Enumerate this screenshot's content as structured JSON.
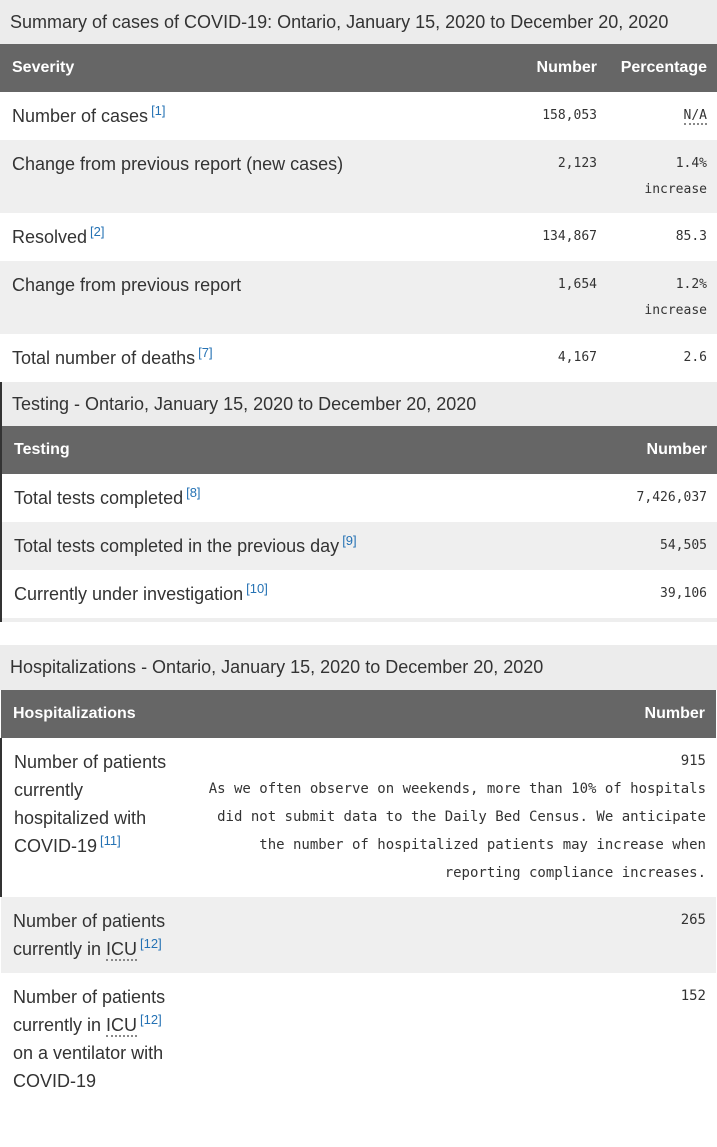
{
  "sections": [
    {
      "caption": "Summary of cases of COVID-19: Ontario, January 15, 2020 to December 20, 2020",
      "headers": [
        "Severity",
        "Number",
        "Percentage"
      ],
      "rows": [
        {
          "label": "Number of cases",
          "ref": "[1]",
          "number": "158,053",
          "percentage": "N/A"
        },
        {
          "label": "Change from previous report (new cases)",
          "number": "2,123",
          "percentage": "1.4%",
          "note": "increase"
        },
        {
          "label": "Resolved",
          "ref": "[2]",
          "number": "134,867",
          "percentage": "85.3"
        },
        {
          "label": "Change from previous report",
          "number": "1,654",
          "percentage": "1.2%",
          "note": "increase"
        },
        {
          "label": "Total number of deaths",
          "ref": "[7]",
          "number": "4,167",
          "percentage": "2.6"
        }
      ]
    },
    {
      "caption": "Testing - Ontario, January 15, 2020 to December 20, 2020",
      "headers": [
        "Testing",
        "Number"
      ],
      "rows": [
        {
          "label": "Total tests completed",
          "ref": "[8]",
          "number": "7,426,037"
        },
        {
          "label": "Total tests completed in the previous day",
          "ref": "[9]",
          "number": "54,505"
        },
        {
          "label": "Currently under investigation",
          "ref": "[10]",
          "number": "39,106"
        }
      ]
    },
    {
      "caption": "Hospitalizations - Ontario, January 15, 2020 to December 20, 2020",
      "headers": [
        "Hospitalizations",
        "Number"
      ],
      "rows": [
        {
          "label": "Number of patients currently hospitalized with COVID-19",
          "ref": "[11]",
          "number": "915",
          "note": "As we often observe on weekends, more than 10% of hospitals did not submit data to the Daily Bed Census. We anticipate the number of hospitalized patients may increase when reporting compliance increases."
        },
        {
          "label": "Number of patients currently in",
          "abbr": "ICU",
          "ref": "[12]",
          "number": "265"
        },
        {
          "label": "Number of patients currently in",
          "abbr": "ICU",
          "ref": "[12]",
          "label_end": "on a ventilator with COVID-19",
          "number": "152"
        }
      ]
    }
  ]
}
